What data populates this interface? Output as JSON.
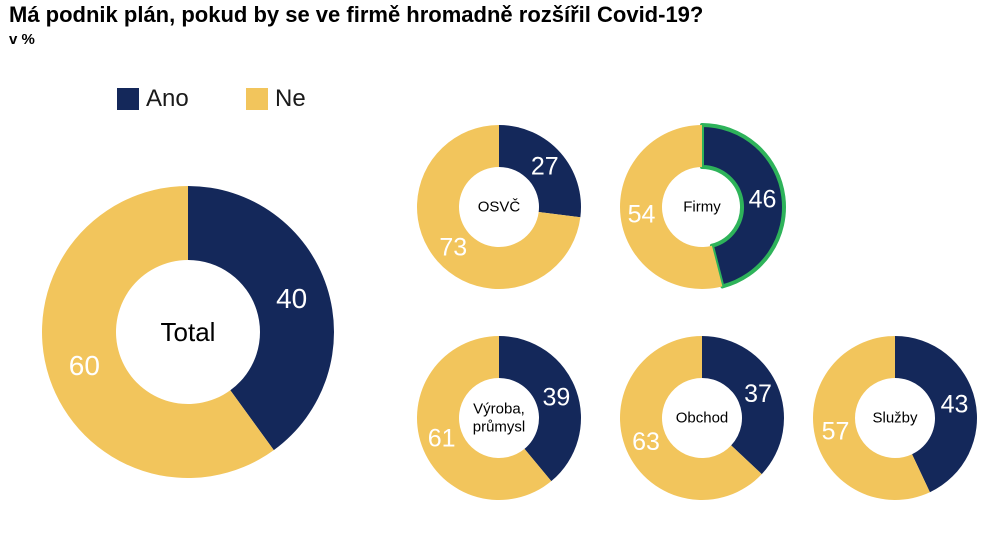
{
  "title": "Má podnik plán, pokud by se ve firmě hromadně rozšířil Covid-19?",
  "subtitle": "v %",
  "colors": {
    "ano": "#14285a",
    "ne": "#f2c55c",
    "highlight": "#2eb35a",
    "label": "#ffffff",
    "center_text": "#000000"
  },
  "legend": [
    {
      "label": "Ano",
      "color": "#14285a"
    },
    {
      "label": "Ne",
      "color": "#f2c55c"
    }
  ],
  "chart_data": [
    {
      "type": "pie",
      "variant": "donut",
      "segment": "Total",
      "categories": [
        "Ano",
        "Ne"
      ],
      "values": [
        40,
        60
      ]
    },
    {
      "type": "pie",
      "variant": "donut",
      "segment": "OSVČ",
      "categories": [
        "Ano",
        "Ne"
      ],
      "values": [
        27,
        73
      ]
    },
    {
      "type": "pie",
      "variant": "donut",
      "segment": "Firmy",
      "categories": [
        "Ano",
        "Ne"
      ],
      "values": [
        46,
        54
      ],
      "highlighted": "Ano"
    },
    {
      "type": "pie",
      "variant": "donut",
      "segment": "Výroba, průmysl",
      "categories": [
        "Ano",
        "Ne"
      ],
      "values": [
        39,
        61
      ]
    },
    {
      "type": "pie",
      "variant": "donut",
      "segment": "Obchod",
      "categories": [
        "Ano",
        "Ne"
      ],
      "values": [
        37,
        63
      ]
    },
    {
      "type": "pie",
      "variant": "donut",
      "segment": "Služby",
      "categories": [
        "Ano",
        "Ne"
      ],
      "values": [
        43,
        57
      ]
    }
  ]
}
